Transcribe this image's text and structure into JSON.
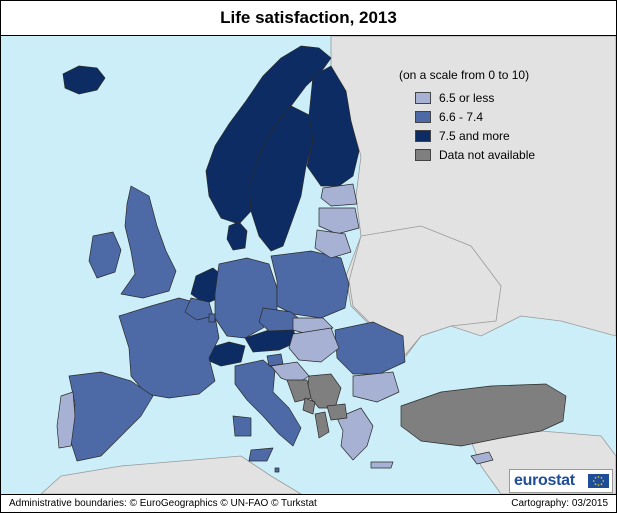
{
  "title": "Life satisfaction, 2013",
  "legend": {
    "title": "(on a scale from 0 to 10)",
    "items": [
      {
        "label": "6.5 or less",
        "color": "#a6b1d3"
      },
      {
        "label": "6.6 - 7.4",
        "color": "#4d6aa6"
      },
      {
        "label": "7.5 and more",
        "color": "#0d2c63"
      },
      {
        "label": "Data not available",
        "color": "#7f7f7f"
      }
    ]
  },
  "colors": {
    "sea": "#cbeef8",
    "non_eu_land": "#e2e2e2",
    "borders": "#2b2b2b"
  },
  "logo": {
    "text": "eurostat",
    "flag_icon": "eu-flag-icon"
  },
  "footer": {
    "left": "Administrative boundaries: © EuroGeographics © UN-FAO © Turkstat",
    "right": "Cartography: 03/2015"
  },
  "regions": [
    {
      "id": "iceland",
      "class": "high"
    },
    {
      "id": "norway",
      "class": "high"
    },
    {
      "id": "sweden",
      "class": "high"
    },
    {
      "id": "finland",
      "class": "high"
    },
    {
      "id": "denmark",
      "class": "high"
    },
    {
      "id": "netherlands",
      "class": "high"
    },
    {
      "id": "switzerland",
      "class": "high"
    },
    {
      "id": "austria",
      "class": "high"
    },
    {
      "id": "united-kingdom",
      "class": "mid"
    },
    {
      "id": "ireland",
      "class": "mid"
    },
    {
      "id": "france",
      "class": "mid"
    },
    {
      "id": "spain",
      "class": "mid"
    },
    {
      "id": "germany",
      "class": "mid"
    },
    {
      "id": "poland",
      "class": "mid"
    },
    {
      "id": "czechia",
      "class": "mid"
    },
    {
      "id": "italy",
      "class": "mid"
    },
    {
      "id": "romania",
      "class": "mid"
    },
    {
      "id": "belgium",
      "class": "mid"
    },
    {
      "id": "luxembourg",
      "class": "mid"
    },
    {
      "id": "malta",
      "class": "mid"
    },
    {
      "id": "slovenia",
      "class": "mid"
    },
    {
      "id": "portugal",
      "class": "low"
    },
    {
      "id": "estonia",
      "class": "low"
    },
    {
      "id": "latvia",
      "class": "low"
    },
    {
      "id": "lithuania",
      "class": "low"
    },
    {
      "id": "hungary",
      "class": "low"
    },
    {
      "id": "slovakia",
      "class": "low"
    },
    {
      "id": "croatia",
      "class": "low"
    },
    {
      "id": "bulgaria",
      "class": "low"
    },
    {
      "id": "greece",
      "class": "low"
    },
    {
      "id": "cyprus",
      "class": "low"
    },
    {
      "id": "turkey",
      "class": "na"
    },
    {
      "id": "serbia",
      "class": "na"
    },
    {
      "id": "bosnia",
      "class": "na"
    },
    {
      "id": "montenegro",
      "class": "na"
    },
    {
      "id": "albania",
      "class": "na"
    },
    {
      "id": "north-macedonia",
      "class": "na"
    }
  ]
}
